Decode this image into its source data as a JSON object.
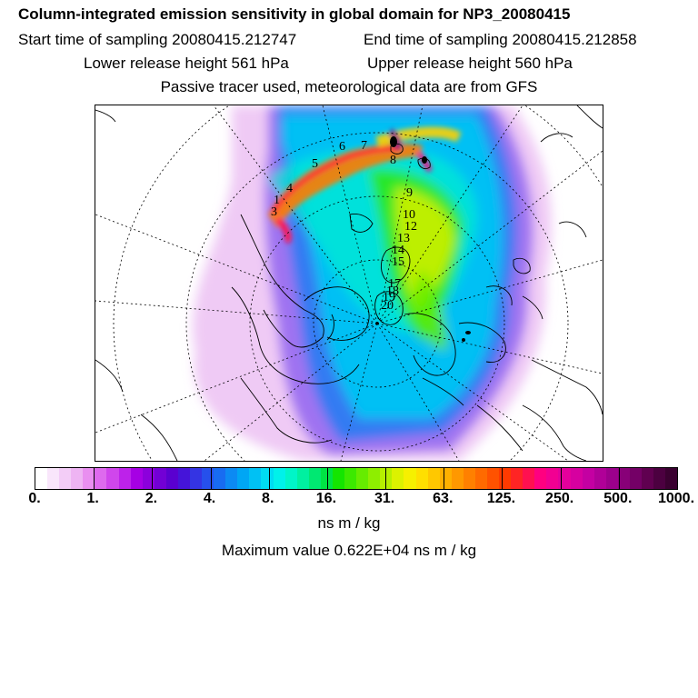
{
  "header": {
    "title": "Column-integrated emission sensitivity in global domain for NP3_20080415",
    "start_time": "Start time of sampling 20080415.212747",
    "end_time": "End time of sampling 20080415.212858",
    "lower_release": "Lower release height  561 hPa",
    "upper_release": "Upper release height  560 hPa",
    "tracer_note": "Passive tracer used, meteorological data are from GFS"
  },
  "map": {
    "projection": "polar stereographic, north pole",
    "trajectory_labels": [
      "1",
      "3",
      "4",
      "5",
      "6",
      "7",
      "8",
      "9",
      "10",
      "12",
      "13",
      "14",
      "15",
      "17",
      "18",
      "19",
      "20"
    ]
  },
  "colorbar": {
    "ticks": [
      "0.",
      "1.",
      "2.",
      "4.",
      "8.",
      "16.",
      "31.",
      "63.",
      "125.",
      "250.",
      "500.",
      "1000."
    ],
    "colors": [
      "#ffffff",
      "#f9e6fb",
      "#f3cdf7",
      "#eeb4f3",
      "#e98ff0",
      "#de6aee",
      "#d046ec",
      "#bd22ea",
      "#a600e4",
      "#8c00dc",
      "#7200d5",
      "#5a00d0",
      "#4514d9",
      "#3434e3",
      "#2650ec",
      "#186cf1",
      "#0c8af3",
      "#00a6f4",
      "#00c1f4",
      "#00dbf2",
      "#00f1ea",
      "#00f5c8",
      "#00f0a0",
      "#00e872",
      "#00e344",
      "#14e500",
      "#3ce900",
      "#66ec00",
      "#8eee00",
      "#b6f000",
      "#dcf200",
      "#f6f000",
      "#ffdf00",
      "#ffc800",
      "#ffb000",
      "#ff9800",
      "#ff8000",
      "#ff6a00",
      "#ff5200",
      "#ff3a00",
      "#ff2424",
      "#ff1050",
      "#ff0080",
      "#f20092",
      "#e4009c",
      "#d600a0",
      "#c400a2",
      "#b00098",
      "#9c008c",
      "#880078",
      "#740066",
      "#600050",
      "#4c0040",
      "#3a0030"
    ],
    "units": "ns m / kg"
  },
  "max_value": "Maximum value  0.622E+04 ns m / kg"
}
